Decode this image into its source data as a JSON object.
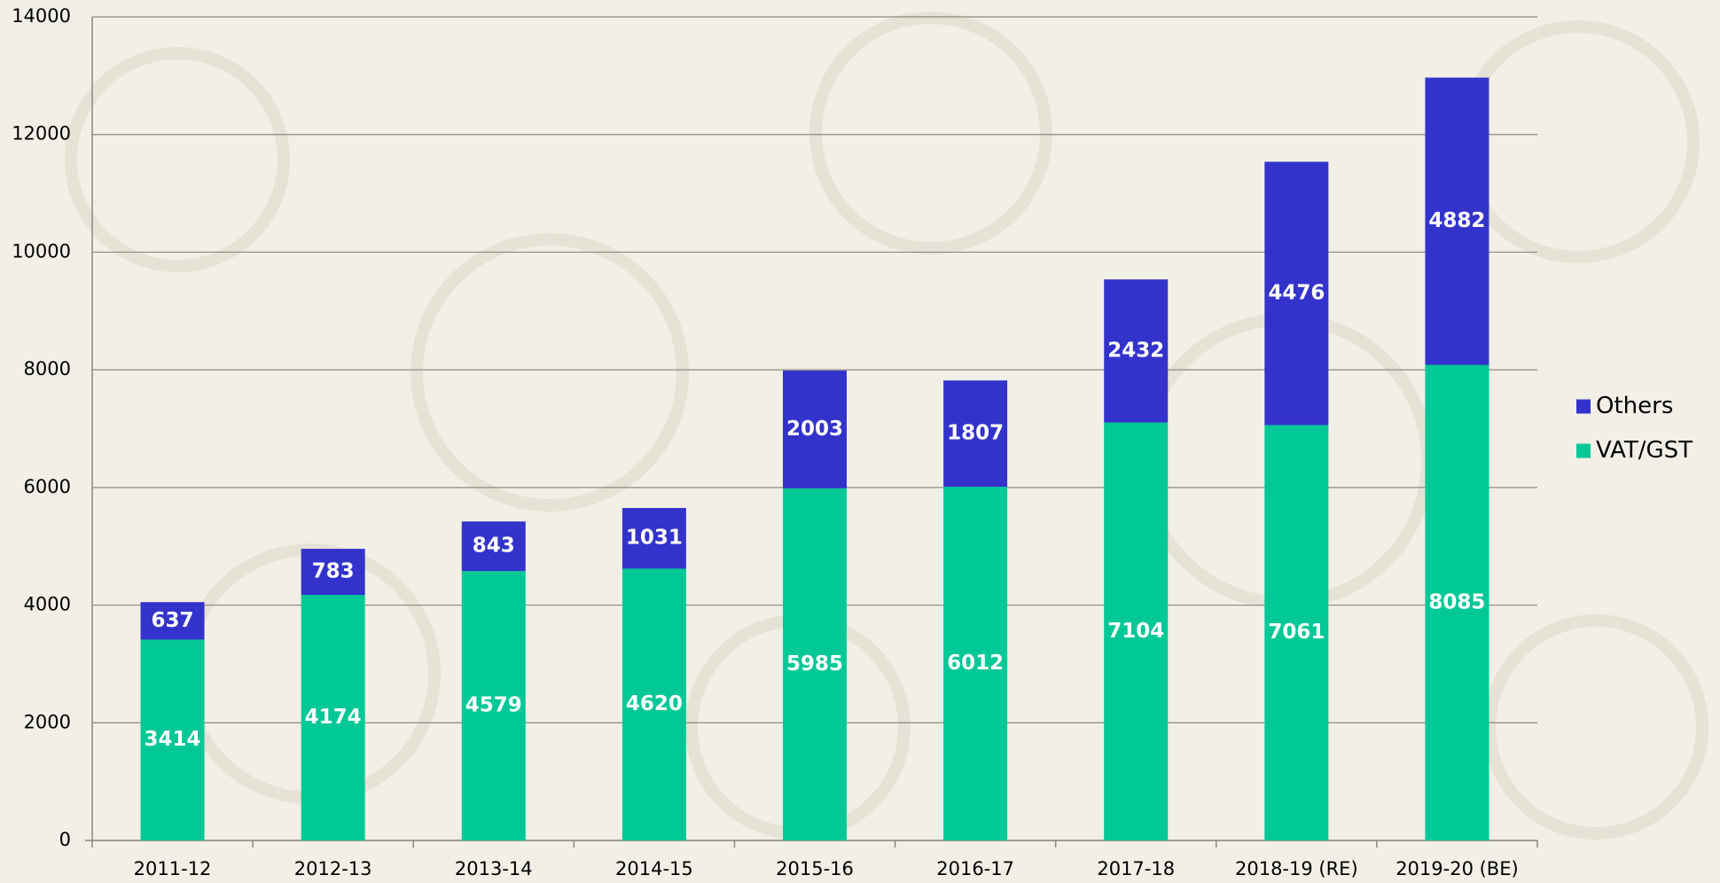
{
  "chart_data": {
    "type": "bar",
    "stacked": true,
    "categories": [
      "2011-12",
      "2012-13",
      "2013-14",
      "2014-15",
      "2015-16",
      "2016-17",
      "2017-18",
      "2018-19 (RE)",
      "2019-20 (BE)"
    ],
    "series": [
      {
        "name": "VAT/GST",
        "color": "#00c896",
        "values": [
          3414,
          4174,
          4579,
          4620,
          5985,
          6012,
          7104,
          7061,
          8085
        ]
      },
      {
        "name": "Others",
        "color": "#3333cc",
        "values": [
          637,
          783,
          843,
          1031,
          2003,
          1807,
          2432,
          4476,
          4882
        ]
      }
    ],
    "ylim": [
      0,
      14000
    ],
    "yticks": [
      0,
      2000,
      4000,
      6000,
      8000,
      10000,
      12000,
      14000
    ],
    "grid": true,
    "legend": "right"
  }
}
